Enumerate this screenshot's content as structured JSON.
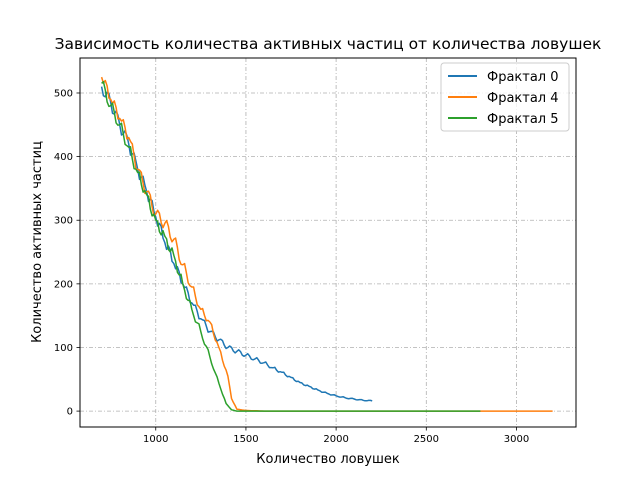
{
  "chart_data": {
    "type": "line",
    "title": "Зависимость количества активных частиц от количества ловушек",
    "xlabel": "Количество ловушек",
    "ylabel": "Количество активных частиц",
    "xlim": [
      580,
      3330
    ],
    "ylim": [
      -25,
      555
    ],
    "xticks": [
      1000,
      1500,
      2000,
      2500,
      3000
    ],
    "yticks": [
      0,
      100,
      200,
      300,
      400,
      500
    ],
    "grid": true,
    "grid_style": "dash-dot",
    "legend_position": "top-right",
    "series": [
      {
        "name": "Фрактал 0",
        "color": "#1f77b4",
        "x": [
          700,
          750,
          800,
          850,
          900,
          950,
          1000,
          1050,
          1100,
          1150,
          1200,
          1250,
          1300,
          1350,
          1400,
          1450,
          1500,
          1550,
          1600,
          1650,
          1700,
          1750,
          1800,
          1850,
          1900,
          1950,
          2000,
          2050,
          2100,
          2150,
          2200
        ],
        "y": [
          510,
          485,
          450,
          420,
          380,
          345,
          305,
          265,
          232,
          200,
          170,
          145,
          125,
          112,
          100,
          94,
          88,
          82,
          76,
          68,
          61,
          53,
          45,
          39,
          33,
          28,
          24,
          21,
          19,
          17,
          16
        ]
      },
      {
        "name": "Фрактал 4",
        "color": "#ff7f0e",
        "x": [
          700,
          750,
          800,
          850,
          900,
          950,
          1000,
          1050,
          1100,
          1150,
          1200,
          1250,
          1300,
          1350,
          1400,
          1420,
          1450,
          1500,
          1600,
          1700,
          2000,
          2500,
          3000,
          3200
        ],
        "y": [
          525,
          490,
          460,
          430,
          380,
          345,
          310,
          295,
          270,
          230,
          195,
          160,
          140,
          100,
          55,
          20,
          3,
          1,
          0,
          0,
          0,
          0,
          0,
          0
        ]
      },
      {
        "name": "Фрактал 5",
        "color": "#2ca02c",
        "x": [
          700,
          750,
          800,
          850,
          900,
          950,
          1000,
          1050,
          1100,
          1150,
          1200,
          1250,
          1300,
          1330,
          1360,
          1390,
          1420,
          1450,
          1500,
          1600,
          2000,
          2500,
          2800
        ],
        "y": [
          515,
          480,
          450,
          415,
          375,
          340,
          300,
          275,
          245,
          200,
          160,
          125,
          85,
          60,
          35,
          12,
          2,
          0,
          0,
          0,
          0,
          0,
          0
        ]
      }
    ]
  }
}
